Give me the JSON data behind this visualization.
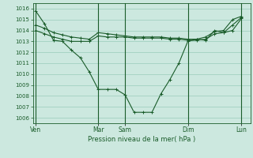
{
  "background_color": "#cce8df",
  "grid_color": "#99ccbb",
  "line_color": "#1a5c2a",
  "xlabel": "Pression niveau de la mer( hPa )",
  "ylim": [
    1005.5,
    1016.5
  ],
  "yticks": [
    1006,
    1007,
    1008,
    1009,
    1010,
    1011,
    1012,
    1013,
    1014,
    1015,
    1016
  ],
  "x_day_labels": [
    "Ven",
    "Mar",
    "Sam",
    "Dim",
    "Lun"
  ],
  "x_day_positions": [
    0.0,
    7.0,
    10.0,
    17.0,
    23.0
  ],
  "xlim": [
    -0.3,
    24.0
  ],
  "series1_x": [
    0,
    1,
    2,
    3,
    4,
    5,
    6,
    7,
    8,
    9,
    10,
    11,
    12,
    13,
    14,
    15,
    16,
    17,
    18,
    19,
    20,
    21,
    22,
    23
  ],
  "series1_y": [
    1015.8,
    1014.6,
    1013.1,
    1013.0,
    1012.2,
    1011.5,
    1010.2,
    1008.6,
    1008.6,
    1008.6,
    1008.1,
    1006.5,
    1006.5,
    1006.5,
    1008.2,
    1009.5,
    1011.0,
    1013.0,
    1013.2,
    1013.1,
    1014.0,
    1013.8,
    1014.5,
    1015.2
  ],
  "series2_x": [
    0,
    1,
    2,
    3,
    4,
    5,
    6,
    7,
    8,
    9,
    10,
    11,
    12,
    13,
    14,
    15,
    16,
    17,
    18,
    19,
    20,
    21,
    22,
    23
  ],
  "series2_y": [
    1014.5,
    1014.2,
    1013.8,
    1013.6,
    1013.4,
    1013.3,
    1013.2,
    1013.8,
    1013.7,
    1013.6,
    1013.5,
    1013.4,
    1013.4,
    1013.4,
    1013.4,
    1013.3,
    1013.3,
    1013.2,
    1013.2,
    1013.4,
    1013.9,
    1014.0,
    1015.0,
    1015.3
  ],
  "series3_x": [
    0,
    1,
    2,
    3,
    4,
    5,
    6,
    7,
    8,
    9,
    10,
    11,
    12,
    13,
    14,
    15,
    16,
    17,
    18,
    19,
    20,
    21,
    22,
    23
  ],
  "series3_y": [
    1014.0,
    1013.7,
    1013.4,
    1013.2,
    1013.0,
    1013.0,
    1013.0,
    1013.5,
    1013.4,
    1013.4,
    1013.4,
    1013.3,
    1013.3,
    1013.3,
    1013.3,
    1013.2,
    1013.2,
    1013.1,
    1013.1,
    1013.2,
    1013.7,
    1013.8,
    1014.0,
    1015.1
  ]
}
